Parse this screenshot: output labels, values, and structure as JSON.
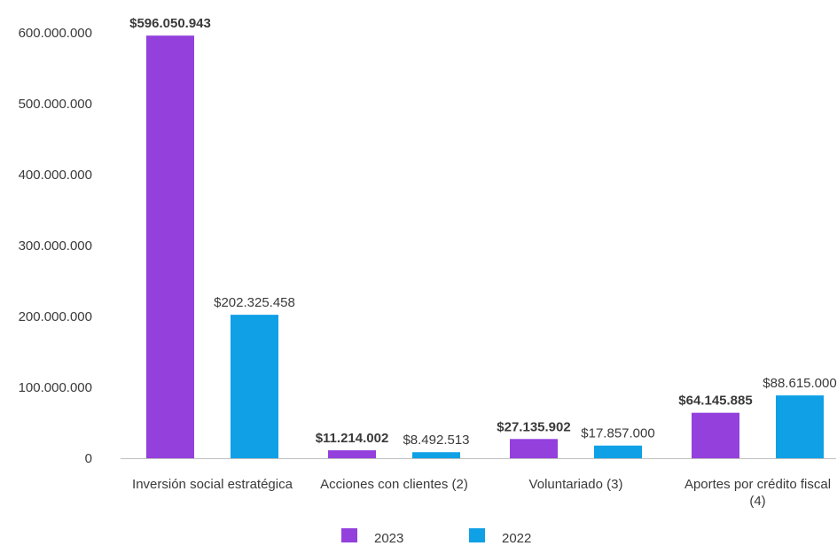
{
  "chart_data": {
    "type": "bar",
    "categories": [
      [
        "Inversión social estratégica"
      ],
      [
        "Acciones con clientes (2)"
      ],
      [
        "Voluntariado (3)"
      ],
      [
        "Aportes por crédito fiscal",
        "(4)"
      ]
    ],
    "y_ticks": [
      "0",
      "100.000.000",
      "200.000.000",
      "300.000.000",
      "400.000.000",
      "500.000.000",
      "600.000.000"
    ],
    "ylim": [
      0,
      600000000
    ],
    "grid": false,
    "legend_position": "bottom",
    "series": [
      {
        "name": "2023",
        "color": "#9340dd",
        "values": [
          596050943,
          11214002,
          27135902,
          64145885
        ],
        "labels": [
          "$596.050.943",
          "$11.214.002",
          "$27.135.902",
          "$64.145.885"
        ],
        "bold_labels": true
      },
      {
        "name": "2022",
        "color": "#0fa0e6",
        "values": [
          202325458,
          8492513,
          17857000,
          88615000
        ],
        "labels": [
          "$202.325.458",
          "$8.492.513",
          "$17.857.000",
          "$88.615.000"
        ],
        "bold_labels": false
      }
    ]
  }
}
